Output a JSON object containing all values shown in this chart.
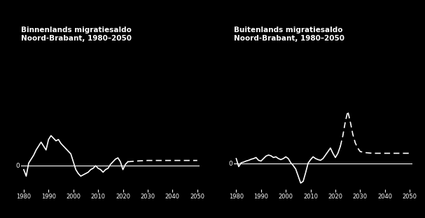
{
  "title_left": "Binnenlands migratiesaldo\nNoord-Brabant, 1980–2050",
  "title_right": "Buitenlands migratiesaldo\nNoord-Brabant, 1980–2050",
  "background_color": "#000000",
  "line_color": "#ffffff",
  "text_color": "#ffffff",
  "xlim": [
    1979,
    2051
  ],
  "xticks": [
    1980,
    1990,
    2000,
    2010,
    2020,
    2030,
    2040,
    2050
  ],
  "binnenlands_years_solid": [
    1980,
    1981,
    1982,
    1983,
    1984,
    1985,
    1986,
    1987,
    1988,
    1989,
    1990,
    1991,
    1992,
    1993,
    1994,
    1995,
    1996,
    1997,
    1998,
    1999,
    2000,
    2001,
    2002,
    2003,
    2004,
    2005,
    2006,
    2007,
    2008,
    2009,
    2010,
    2011,
    2012,
    2013,
    2014,
    2015,
    2016,
    2017,
    2018,
    2019,
    2020,
    2021,
    2022
  ],
  "binnenlands_values_solid": [
    -0.3,
    -0.8,
    0.2,
    0.5,
    0.8,
    1.2,
    1.5,
    1.8,
    1.5,
    1.2,
    2.0,
    2.3,
    2.1,
    1.9,
    2.0,
    1.7,
    1.5,
    1.3,
    1.1,
    0.9,
    0.3,
    -0.3,
    -0.6,
    -0.8,
    -0.7,
    -0.6,
    -0.5,
    -0.3,
    -0.2,
    0.0,
    -0.2,
    -0.3,
    -0.5,
    -0.3,
    -0.2,
    0.1,
    0.3,
    0.5,
    0.6,
    0.3,
    -0.3,
    0.1,
    0.3
  ],
  "binnenlands_years_dashed": [
    2022,
    2025,
    2030,
    2035,
    2040,
    2045,
    2050
  ],
  "binnenlands_values_dashed": [
    0.3,
    0.35,
    0.4,
    0.4,
    0.4,
    0.4,
    0.4
  ],
  "binnenlands_ylim": [
    -2.0,
    5.5
  ],
  "buitenlands_years_solid": [
    1980,
    1981,
    1982,
    1983,
    1984,
    1985,
    1986,
    1987,
    1988,
    1989,
    1990,
    1991,
    1992,
    1993,
    1994,
    1995,
    1996,
    1997,
    1998,
    1999,
    2000,
    2001,
    2002,
    2003,
    2004,
    2005,
    2006,
    2007,
    2008,
    2009,
    2010,
    2011,
    2012,
    2013,
    2014,
    2015,
    2016,
    2017,
    2018,
    2019,
    2020,
    2021,
    2022
  ],
  "buitenlands_values_solid": [
    1.5,
    -0.8,
    0.3,
    0.5,
    0.8,
    1.0,
    1.3,
    1.5,
    1.8,
    1.0,
    0.8,
    1.5,
    2.2,
    2.5,
    2.3,
    1.8,
    2.0,
    1.5,
    1.2,
    1.5,
    2.0,
    1.5,
    0.3,
    -0.5,
    -1.5,
    -3.5,
    -5.5,
    -5.0,
    -2.5,
    0.2,
    1.2,
    2.0,
    1.5,
    1.2,
    1.0,
    1.5,
    2.5,
    3.5,
    4.5,
    3.0,
    1.8,
    3.0,
    5.0
  ],
  "buitenlands_years_dashed": [
    2022,
    2023,
    2024,
    2025,
    2026,
    2027,
    2028,
    2029,
    2030,
    2032,
    2035,
    2040,
    2045,
    2050
  ],
  "buitenlands_values_dashed": [
    5.0,
    8.0,
    12.0,
    15.0,
    12.0,
    8.5,
    6.0,
    4.5,
    3.5,
    3.2,
    3.0,
    3.0,
    3.0,
    3.0
  ],
  "buitenlands_ylim": [
    -8.0,
    20.0
  ]
}
